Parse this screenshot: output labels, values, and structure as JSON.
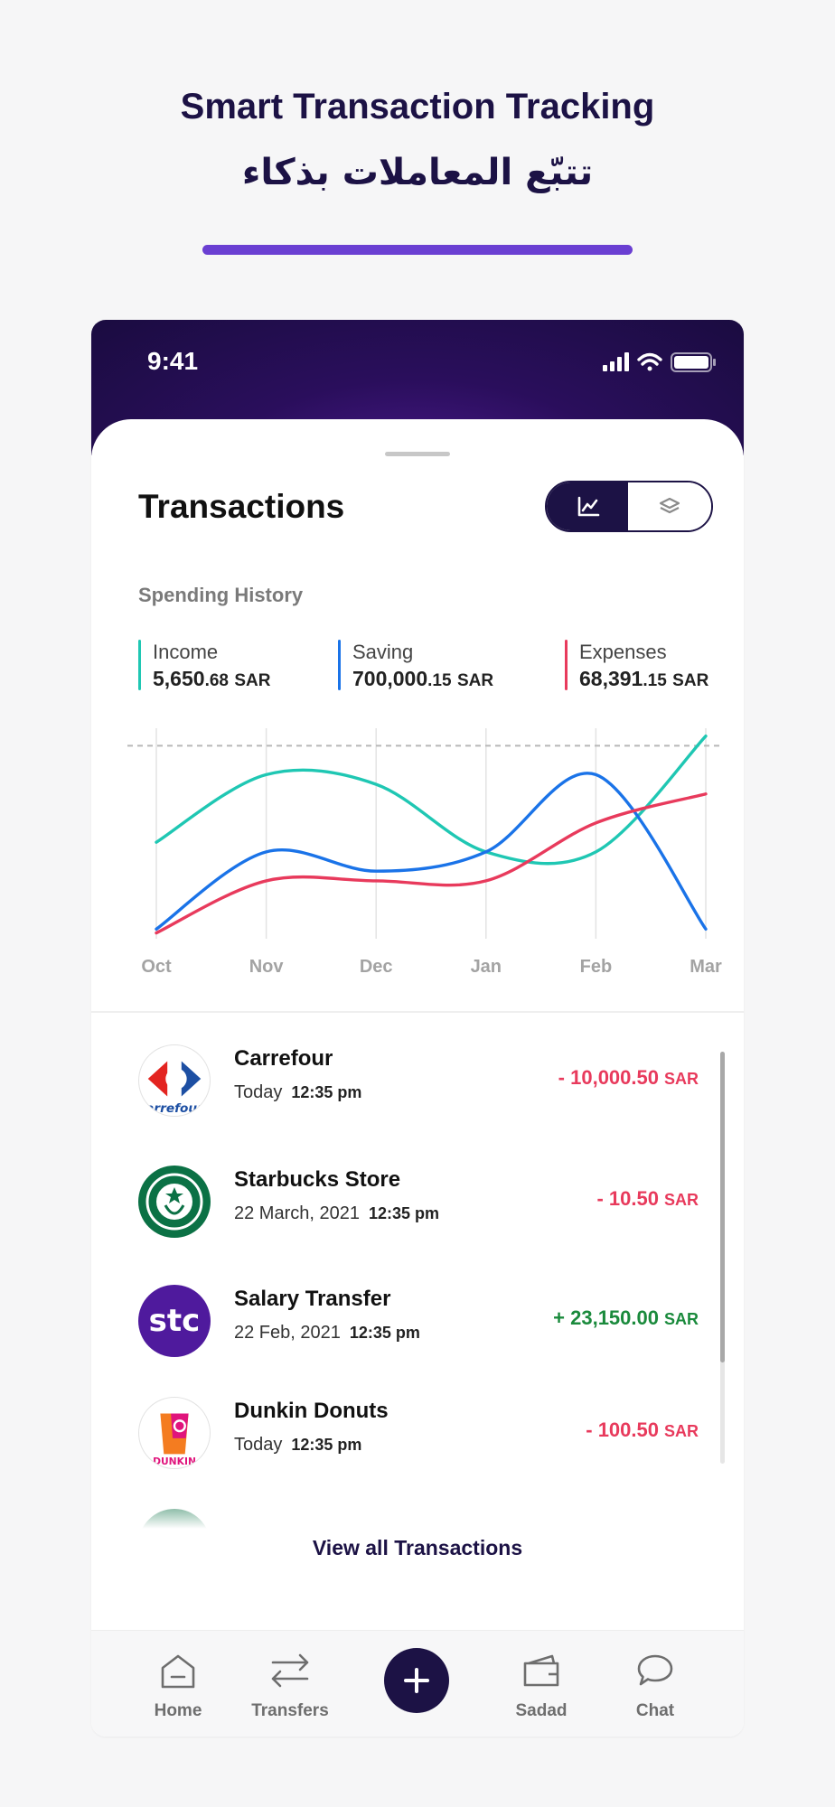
{
  "hero": {
    "title": "Smart Transaction Tracking",
    "subtitle": "تتبّع المعاملات بذكاء"
  },
  "status_bar": {
    "time": "9:41",
    "icons": [
      "signal-icon",
      "wifi-icon",
      "battery-icon"
    ]
  },
  "screen": {
    "title": "Transactions",
    "view_toggle": {
      "options": [
        "chart-icon",
        "layers-icon"
      ],
      "selected": "chart-icon"
    },
    "section_label": "Spending History"
  },
  "stats": [
    {
      "label": "Income",
      "integer": "5,650",
      "decimal": ".68",
      "currency": "SAR",
      "color": "#1fc7b3"
    },
    {
      "label": "Saving",
      "integer": "700,000",
      "decimal": ".15",
      "currency": "SAR",
      "color": "#1a73e8"
    },
    {
      "label": "Expenses",
      "integer": "68,391",
      "decimal": ".15",
      "currency": "SAR",
      "color": "#e83a5c"
    }
  ],
  "chart_data": {
    "type": "line",
    "x": [
      "Oct",
      "Nov",
      "Dec",
      "Jan",
      "Feb",
      "Mar"
    ],
    "series": [
      {
        "name": "Income",
        "color": "#1fc7b3",
        "values": [
          0.5,
          0.85,
          0.8,
          0.45,
          0.45,
          1.05
        ]
      },
      {
        "name": "Saving",
        "color": "#1a73e8",
        "values": [
          0.05,
          0.45,
          0.35,
          0.45,
          0.85,
          0.05
        ]
      },
      {
        "name": "Expenses",
        "color": "#e83a5c",
        "values": [
          0.03,
          0.3,
          0.3,
          0.3,
          0.6,
          0.75
        ]
      }
    ],
    "ylim": [
      0,
      1.1
    ],
    "reference_line": 1.0,
    "grid": "vertical"
  },
  "transactions": [
    {
      "merchant": "Carrefour",
      "date": "Today",
      "time": "12:35 pm",
      "sign": "- ",
      "amount": "10,000.50",
      "currency": "SAR",
      "type": "debit",
      "logo": "carrefour-logo"
    },
    {
      "merchant": "Starbucks Store",
      "date": "22 March, 2021",
      "time": "12:35 pm",
      "sign": "- ",
      "amount": "10.50",
      "currency": "SAR",
      "type": "debit",
      "logo": "starbucks-logo"
    },
    {
      "merchant": "Salary Transfer",
      "date": "22 Feb, 2021",
      "time": "12:35 pm",
      "sign": "+ ",
      "amount": "23,150.00",
      "currency": "SAR",
      "type": "credit",
      "logo": "stc-logo"
    },
    {
      "merchant": "Dunkin Donuts",
      "date": "Today",
      "time": "12:35 pm",
      "sign": "- ",
      "amount": "100.50",
      "currency": "SAR",
      "type": "debit",
      "logo": "dunkin-logo"
    }
  ],
  "view_all_label": "View all Transactions",
  "tabs": [
    {
      "label": "Home",
      "icon": "home-icon"
    },
    {
      "label": "Transfers",
      "icon": "transfers-icon"
    },
    {
      "label": "",
      "icon": "plus-icon"
    },
    {
      "label": "Sadad",
      "icon": "wallet-icon"
    },
    {
      "label": "Chat",
      "icon": "chat-icon"
    }
  ],
  "colors": {
    "brand": "#1c1245",
    "accent": "#6a3fd2",
    "negative": "#e83a5c",
    "positive": "#1a8a3c"
  }
}
